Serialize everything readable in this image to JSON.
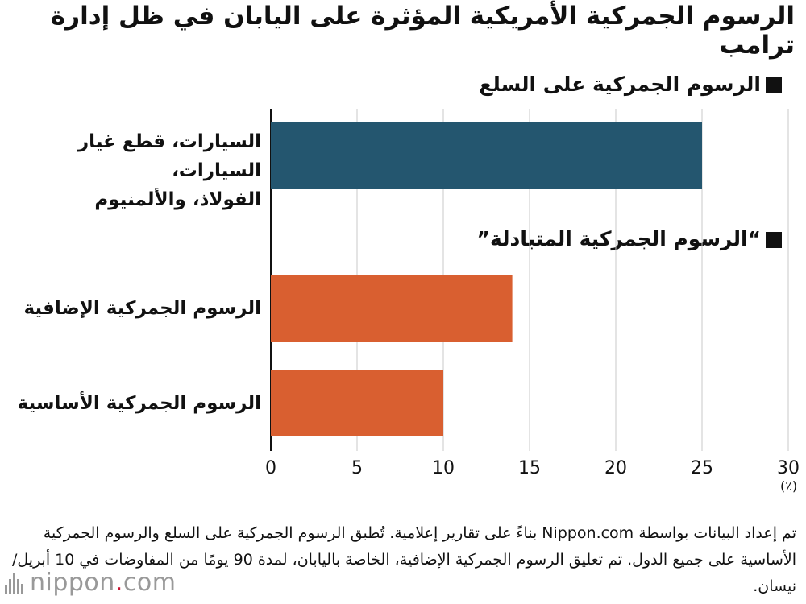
{
  "title": "الرسوم الجمركية الأمريكية المؤثرة على اليابان في ظل إدارة ترامب",
  "sections": [
    {
      "label": "الرسوم الجمركية على السلع"
    },
    {
      "label": "“الرسوم الجمركية المتبادلة”"
    }
  ],
  "categories": [
    {
      "lines": [
        "السيارات، قطع غيار السيارات،",
        "الفولاذ، والألمنيوم"
      ]
    },
    {
      "lines": [
        "الرسوم الجمركية الإضافية"
      ]
    },
    {
      "lines": [
        "الرسوم الجمركية الأساسية"
      ]
    }
  ],
  "chart_data": {
    "type": "bar",
    "orientation": "horizontal",
    "categories": [
      "السيارات، قطع غيار السيارات، الفولاذ، والألمنيوم",
      "الرسوم الجمركية الإضافية",
      "الرسوم الجمركية الأساسية"
    ],
    "values": [
      25,
      14,
      10
    ],
    "colors": [
      "#24566f",
      "#d95f30",
      "#d95f30"
    ],
    "xlim": [
      0,
      30
    ],
    "xticks": [
      "0",
      "5",
      "10",
      "15",
      "20",
      "25",
      "30"
    ],
    "unit_label": "(٪)",
    "grid": true
  },
  "footnote": "تم إعداد البيانات بواسطة Nippon.com بناءً على تقارير إعلامية. تُطبق الرسوم الجمركية على السلع والرسوم الجمركية الأساسية على جميع الدول. تم تعليق الرسوم الجمركية الإضافية، الخاصة باليابان، لمدة 90 يومًا من المفاوضات في 10 أبريل/ نيسان.",
  "logo": {
    "name": "nippon",
    "dot": ".",
    "suffix": "com"
  }
}
